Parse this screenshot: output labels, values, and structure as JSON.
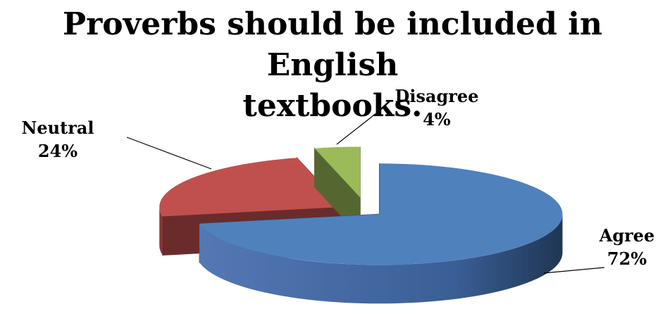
{
  "chart_data": {
    "type": "pie",
    "title": "Proverbs should be included in English textbooks.",
    "title_lines": [
      "Proverbs should be included in English",
      "textbooks."
    ],
    "categories": [
      "Agree",
      "Neutral",
      "Disagree"
    ],
    "values": [
      72,
      24,
      4
    ],
    "value_labels": [
      "72%",
      "24%",
      "4%"
    ],
    "colors": [
      "#4F81BD",
      "#C0504D",
      "#9BBB59"
    ],
    "style": "3d-exploded"
  }
}
